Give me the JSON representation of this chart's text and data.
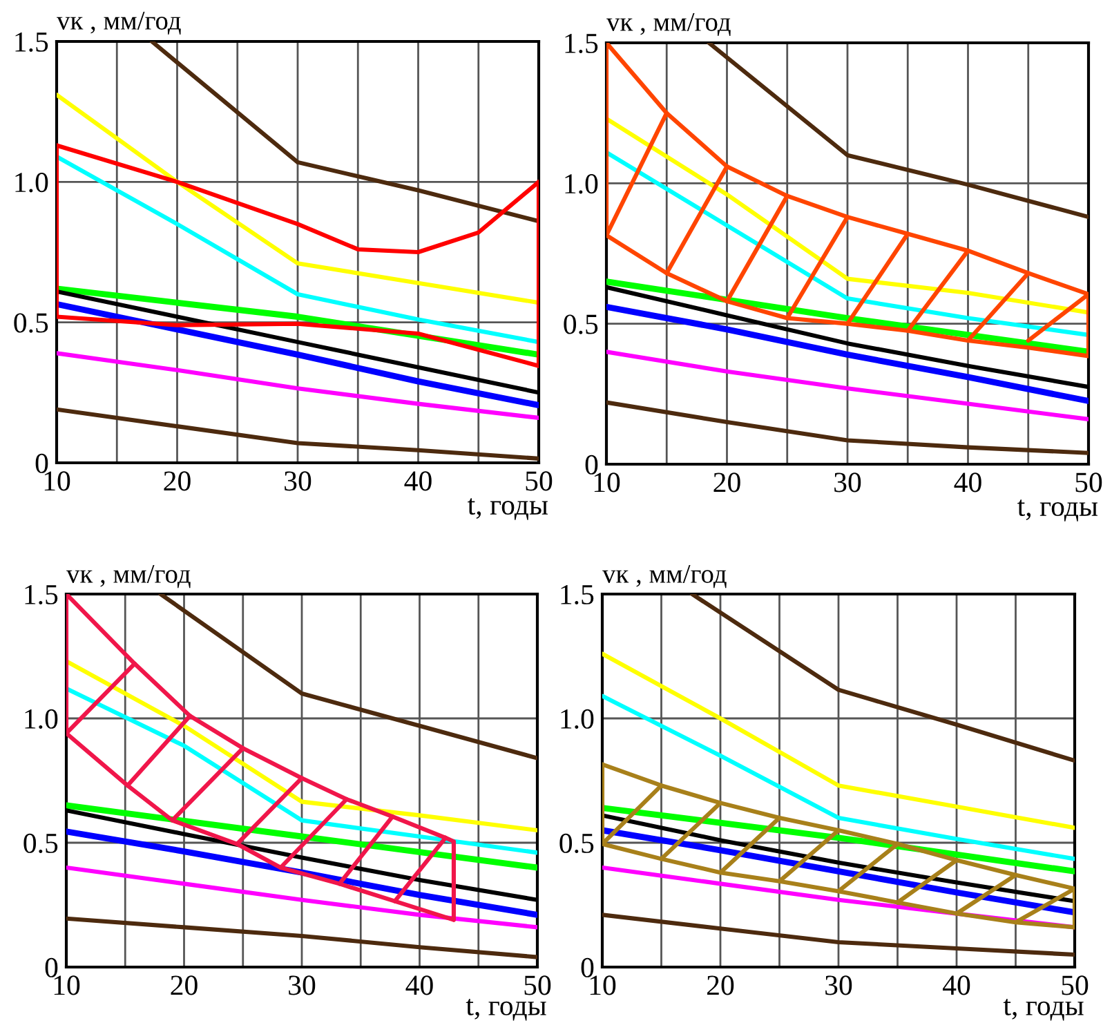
{
  "chart_data": [
    {
      "type": "line",
      "xlabel": "t, годы",
      "ylabel": "vк , мм/год",
      "xlim": [
        10,
        50
      ],
      "ylim": [
        0,
        1.5
      ],
      "xticks": [
        10,
        {
          "value": 15,
          "label": null
        },
        20,
        {
          "value": 25,
          "label": null
        },
        30,
        {
          "value": 35,
          "label": null
        },
        40,
        {
          "value": 45,
          "label": null
        },
        50
      ],
      "yticks": [
        0,
        {
          "value": 0.5,
          "label": "0.5"
        },
        {
          "value": 1.0,
          "label": "1.0"
        },
        {
          "value": 1.5,
          "label": "1.5"
        }
      ],
      "grid": true,
      "series": [
        {
          "color": "#4d2a0e",
          "x": [
            17.9,
            30,
            40,
            50
          ],
          "values": [
            1.5,
            1.07,
            0.97,
            0.86
          ]
        },
        {
          "color": "#ffff00",
          "x": [
            10,
            20,
            30,
            40,
            50
          ],
          "values": [
            1.31,
            1.0,
            0.71,
            0.64,
            0.57
          ]
        },
        {
          "color": "#00ffff",
          "x": [
            10,
            20,
            30,
            40,
            50
          ],
          "values": [
            1.09,
            0.85,
            0.6,
            0.51,
            0.43
          ]
        },
        {
          "color": "#00ff00",
          "x": [
            10,
            30,
            50
          ],
          "values": [
            0.62,
            0.52,
            0.385
          ]
        },
        {
          "color": "#000000",
          "x": [
            10,
            20,
            30,
            40,
            50
          ],
          "values": [
            0.61,
            0.52,
            0.43,
            0.34,
            0.25
          ]
        },
        {
          "color": "#0000ff",
          "x": [
            10,
            20,
            30,
            40,
            50
          ],
          "values": [
            0.565,
            0.475,
            0.385,
            0.29,
            0.205
          ]
        },
        {
          "color": "#ff00ff",
          "x": [
            10,
            20,
            30,
            40,
            50
          ],
          "values": [
            0.39,
            0.33,
            0.265,
            0.21,
            0.16
          ]
        },
        {
          "color": "#4d2a0e",
          "x": [
            10,
            20,
            30,
            40,
            50
          ],
          "values": [
            0.19,
            0.13,
            0.07,
            0.045,
            0.015
          ]
        },
        {
          "color": "#ff0000",
          "x": [
            10,
            20,
            30,
            35,
            40,
            45,
            50
          ],
          "values": [
            1.13,
            1.0,
            0.85,
            0.76,
            0.75,
            0.82,
            1.0
          ]
        },
        {
          "color": "#ff0000",
          "x": [
            10,
            20,
            30,
            40,
            50
          ],
          "values": [
            0.52,
            0.49,
            0.495,
            0.46,
            0.345
          ]
        },
        {
          "color": "#ff0000",
          "x": [
            10,
            10,
            null,
            50,
            50
          ],
          "values": [
            0.52,
            1.13,
            null,
            0.345,
            1.0
          ]
        }
      ]
    },
    {
      "type": "line",
      "xlabel": "t, годы",
      "ylabel": "vк , мм/год",
      "xlim": [
        10,
        50
      ],
      "ylim": [
        0,
        1.5
      ],
      "xticks": [
        10,
        {
          "value": 15,
          "label": null
        },
        20,
        {
          "value": 25,
          "label": null
        },
        30,
        {
          "value": 35,
          "label": null
        },
        40,
        {
          "value": 45,
          "label": null
        },
        50
      ],
      "yticks": [
        0,
        {
          "value": 0.5,
          "label": "0.5"
        },
        {
          "value": 1.0,
          "label": "1.0"
        },
        {
          "value": 1.5,
          "label": "1.5"
        }
      ],
      "grid": true,
      "series": [
        {
          "color": "#4d2a0e",
          "x": [
            18.5,
            30,
            40,
            50
          ],
          "values": [
            1.5,
            1.1,
            0.995,
            0.88
          ]
        },
        {
          "color": "#ffff00",
          "x": [
            10,
            20,
            30,
            40,
            50
          ],
          "values": [
            1.23,
            0.96,
            0.66,
            0.61,
            0.54
          ]
        },
        {
          "color": "#00ffff",
          "x": [
            10,
            20,
            30,
            40,
            50
          ],
          "values": [
            1.11,
            0.85,
            0.59,
            0.52,
            0.46
          ]
        },
        {
          "color": "#00ff00",
          "x": [
            10,
            30,
            50
          ],
          "values": [
            0.65,
            0.52,
            0.4
          ]
        },
        {
          "color": "#000000",
          "x": [
            10,
            20,
            30,
            40,
            50
          ],
          "values": [
            0.63,
            0.53,
            0.43,
            0.35,
            0.275
          ]
        },
        {
          "color": "#0000ff",
          "x": [
            10,
            20,
            30,
            40,
            50
          ],
          "values": [
            0.56,
            0.48,
            0.39,
            0.31,
            0.225
          ]
        },
        {
          "color": "#ff00ff",
          "x": [
            10,
            20,
            30,
            40,
            50
          ],
          "values": [
            0.4,
            0.33,
            0.27,
            0.215,
            0.16
          ]
        },
        {
          "color": "#4d2a0e",
          "x": [
            10,
            20,
            30,
            40,
            50
          ],
          "values": [
            0.22,
            0.15,
            0.085,
            0.06,
            0.04
          ]
        },
        {
          "color": "#ff4500",
          "x": [
            10,
            15,
            20,
            25,
            30,
            35,
            40,
            45,
            50
          ],
          "values": [
            1.5,
            1.25,
            1.06,
            0.955,
            0.88,
            0.82,
            0.76,
            0.68,
            0.605
          ]
        },
        {
          "color": "#ff4500",
          "x": [
            10,
            15,
            20,
            25,
            30,
            35,
            40,
            45,
            50
          ],
          "values": [
            0.815,
            0.68,
            0.58,
            0.52,
            0.5,
            0.475,
            0.44,
            0.415,
            0.385
          ]
        },
        {
          "color": "#ff4500",
          "x": [
            10,
            10,
            null,
            50,
            50,
            null,
            10,
            15,
            null,
            15,
            20,
            null,
            20,
            25,
            null,
            25,
            30,
            null,
            30,
            35,
            null,
            35,
            40,
            null,
            40,
            45,
            null,
            45,
            50
          ],
          "values": [
            0.815,
            1.5,
            null,
            0.385,
            0.605,
            null,
            0.815,
            1.25,
            null,
            0.68,
            1.06,
            null,
            0.58,
            0.955,
            null,
            0.52,
            0.88,
            null,
            0.5,
            0.82,
            null,
            0.475,
            0.76,
            null,
            0.44,
            0.68,
            null,
            0.44,
            0.605
          ]
        }
      ]
    },
    {
      "type": "line",
      "xlabel": "t, годы",
      "ylabel": "vк , мм/год",
      "xlim": [
        10,
        50
      ],
      "ylim": [
        0,
        1.5
      ],
      "xticks": [
        10,
        {
          "value": 15,
          "label": null
        },
        20,
        {
          "value": 25,
          "label": null
        },
        30,
        {
          "value": 35,
          "label": null
        },
        40,
        {
          "value": 45,
          "label": null
        },
        50
      ],
      "yticks": [
        0,
        {
          "value": 0.5,
          "label": "0.5"
        },
        {
          "value": 1.0,
          "label": "1.0"
        },
        {
          "value": 1.5,
          "label": "1.5"
        }
      ],
      "grid": true,
      "series": [
        {
          "color": "#4d2a0e",
          "x": [
            18.0,
            30,
            40,
            50
          ],
          "values": [
            1.5,
            1.1,
            0.97,
            0.84
          ]
        },
        {
          "color": "#ffff00",
          "x": [
            10,
            20,
            30,
            40,
            50
          ],
          "values": [
            1.23,
            0.97,
            0.665,
            0.61,
            0.55
          ]
        },
        {
          "color": "#00ffff",
          "x": [
            10,
            20,
            30,
            40,
            50
          ],
          "values": [
            1.12,
            0.89,
            0.59,
            0.525,
            0.46
          ]
        },
        {
          "color": "#00ff00",
          "x": [
            10,
            30,
            50
          ],
          "values": [
            0.65,
            0.525,
            0.4
          ]
        },
        {
          "color": "#000000",
          "x": [
            10,
            20,
            30,
            40,
            50
          ],
          "values": [
            0.63,
            0.535,
            0.44,
            0.35,
            0.27
          ]
        },
        {
          "color": "#0000ff",
          "x": [
            10,
            20,
            30,
            40,
            50
          ],
          "values": [
            0.545,
            0.465,
            0.38,
            0.29,
            0.21
          ]
        },
        {
          "color": "#ff00ff",
          "x": [
            10,
            20,
            30,
            40,
            50
          ],
          "values": [
            0.4,
            0.335,
            0.27,
            0.21,
            0.16
          ]
        },
        {
          "color": "#4d2a0e",
          "x": [
            10,
            20,
            30,
            40,
            50
          ],
          "values": [
            0.195,
            0.16,
            0.125,
            0.08,
            0.04
          ]
        },
        {
          "color": "#f0164a",
          "x": [
            10,
            15.8,
            20.5,
            25,
            30,
            33.8,
            37.7,
            42.2
          ],
          "values": [
            1.5,
            1.22,
            1.01,
            0.88,
            0.76,
            0.675,
            0.605,
            0.52
          ]
        },
        {
          "color": "#f0164a",
          "x": [
            10,
            15.2,
            19,
            24.5,
            28.2,
            33.2,
            37.9,
            42.9
          ],
          "values": [
            0.94,
            0.73,
            0.59,
            0.495,
            0.4,
            0.335,
            0.265,
            0.19
          ]
        },
        {
          "color": "#f0164a",
          "x": [
            10,
            10,
            null,
            42.9,
            42.9,
            null,
            42.2,
            42.9,
            null,
            10,
            15.8,
            null,
            15.2,
            20.5,
            null,
            19,
            25,
            null,
            24.5,
            30,
            null,
            28.2,
            33.8,
            null,
            33.2,
            37.7,
            null,
            37.9,
            42.2
          ],
          "values": [
            0.94,
            1.5,
            null,
            0.19,
            0.505,
            null,
            0.52,
            0.505,
            null,
            0.94,
            1.22,
            null,
            0.73,
            1.01,
            null,
            0.59,
            0.88,
            null,
            0.495,
            0.76,
            null,
            0.4,
            0.675,
            null,
            0.335,
            0.605,
            null,
            0.265,
            0.52
          ]
        }
      ]
    },
    {
      "type": "line",
      "xlabel": "t, годы",
      "ylabel": "vк , мм/год",
      "xlim": [
        10,
        50
      ],
      "ylim": [
        0,
        1.5
      ],
      "xticks": [
        10,
        {
          "value": 15,
          "label": null
        },
        20,
        {
          "value": 25,
          "label": null
        },
        30,
        {
          "value": 35,
          "label": null
        },
        40,
        {
          "value": 45,
          "label": null
        },
        50
      ],
      "yticks": [
        0,
        {
          "value": 0.5,
          "label": "0.5"
        },
        {
          "value": 1.0,
          "label": "1.0"
        },
        {
          "value": 1.5,
          "label": "1.5"
        }
      ],
      "grid": true,
      "series": [
        {
          "color": "#4d2a0e",
          "x": [
            17.6,
            30,
            40,
            50
          ],
          "values": [
            1.5,
            1.115,
            0.975,
            0.83
          ]
        },
        {
          "color": "#ffff00",
          "x": [
            10,
            20,
            30,
            40,
            50
          ],
          "values": [
            1.26,
            1.0,
            0.73,
            0.645,
            0.56
          ]
        },
        {
          "color": "#00ffff",
          "x": [
            10,
            20,
            30,
            40,
            50
          ],
          "values": [
            1.09,
            0.85,
            0.6,
            0.515,
            0.435
          ]
        },
        {
          "color": "#00ff00",
          "x": [
            10,
            30,
            50
          ],
          "values": [
            0.64,
            0.52,
            0.385
          ]
        },
        {
          "color": "#000000",
          "x": [
            10,
            20,
            30,
            40,
            50
          ],
          "values": [
            0.61,
            0.51,
            0.42,
            0.34,
            0.265
          ]
        },
        {
          "color": "#0000ff",
          "x": [
            10,
            20,
            30,
            40,
            50
          ],
          "values": [
            0.55,
            0.47,
            0.385,
            0.3,
            0.22
          ]
        },
        {
          "color": "#ff00ff",
          "x": [
            10,
            20,
            30,
            40,
            50
          ],
          "values": [
            0.4,
            0.335,
            0.27,
            0.215,
            0.16
          ]
        },
        {
          "color": "#4d2a0e",
          "x": [
            10,
            20,
            30,
            40,
            50
          ],
          "values": [
            0.21,
            0.155,
            0.1,
            0.075,
            0.05
          ]
        },
        {
          "color": "#a8801a",
          "x": [
            10,
            15,
            20,
            25,
            30,
            35,
            40,
            45,
            50
          ],
          "values": [
            0.815,
            0.73,
            0.66,
            0.6,
            0.55,
            0.495,
            0.43,
            0.37,
            0.315
          ]
        },
        {
          "color": "#a8801a",
          "x": [
            10,
            15,
            20,
            25,
            30,
            35,
            40,
            45,
            50
          ],
          "values": [
            0.495,
            0.435,
            0.38,
            0.345,
            0.305,
            0.26,
            0.215,
            0.18,
            0.16
          ]
        },
        {
          "color": "#a8801a",
          "x": [
            10,
            10,
            null,
            50,
            50,
            null,
            10,
            15,
            null,
            15,
            20,
            null,
            20,
            25,
            null,
            25,
            30,
            null,
            30,
            35,
            null,
            35,
            40,
            null,
            40,
            45,
            null,
            45,
            50
          ],
          "values": [
            0.495,
            0.815,
            null,
            0.16,
            0.315,
            null,
            0.495,
            0.73,
            null,
            0.435,
            0.66,
            null,
            0.38,
            0.6,
            null,
            0.345,
            0.55,
            null,
            0.305,
            0.495,
            null,
            0.26,
            0.43,
            null,
            0.215,
            0.37,
            null,
            0.18,
            0.315
          ]
        }
      ]
    }
  ]
}
